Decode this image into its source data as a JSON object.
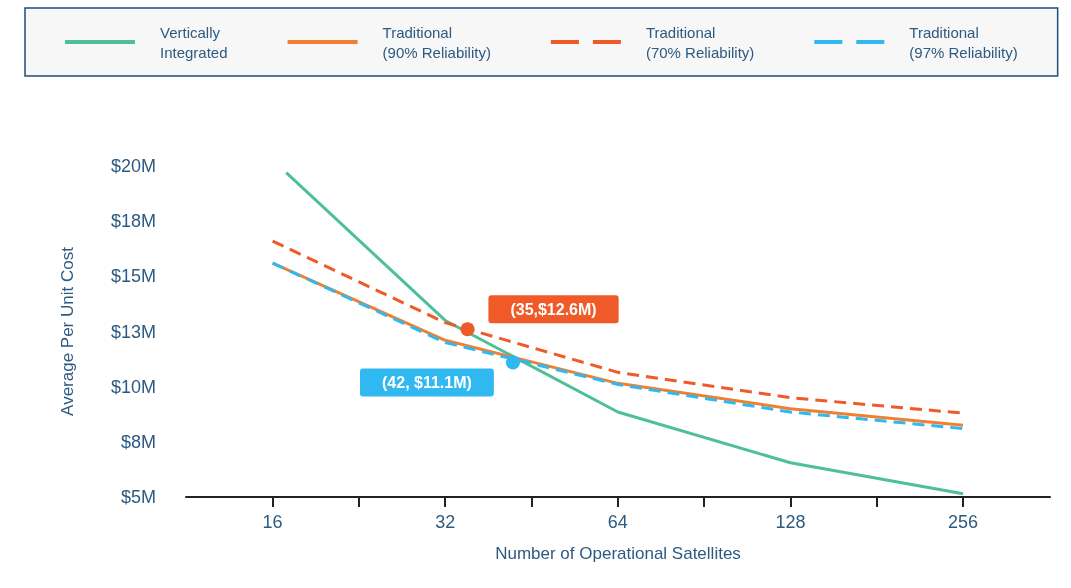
{
  "chart_data": {
    "type": "line",
    "xlabel": "Number of Operational Satellites",
    "ylabel": "Average Per Unit Cost",
    "log": "x",
    "xlim": [
      11.3,
      363
    ],
    "xticks": [
      16,
      {
        "value": 22.6,
        "label": null
      },
      32,
      {
        "value": 45.3,
        "label": null
      },
      64,
      {
        "value": 90.5,
        "label": null
      },
      128,
      {
        "value": 181,
        "label": null
      },
      256
    ],
    "ylim": [
      5,
      20
    ],
    "yticks": [
      {
        "value": 5,
        "label": "$5M"
      },
      {
        "value": 7.5,
        "label": "$8M"
      },
      {
        "value": 10,
        "label": "$10M"
      },
      {
        "value": 12.5,
        "label": "$13M"
      },
      {
        "value": 15,
        "label": "$15M"
      },
      {
        "value": 17.5,
        "label": "$18M"
      },
      {
        "value": 20,
        "label": "$20M"
      }
    ],
    "grid": false,
    "legend": "top",
    "marker": "none",
    "series": [
      {
        "name": "Vertically Integrated",
        "color": "#4dbf99",
        "line_style": "solid",
        "x": [
          16.9,
          32,
          64,
          128,
          256
        ],
        "values": [
          19.7,
          13.0,
          8.85,
          6.55,
          5.15
        ]
      },
      {
        "name": "Traditional (90% Reliability)",
        "color": "#f08030",
        "line_style": "solid",
        "x": [
          16,
          32,
          64,
          128,
          256
        ],
        "values": [
          15.6,
          12.1,
          10.15,
          9.0,
          8.25
        ]
      },
      {
        "name": "Traditional (70% Reliability)",
        "color": "#f05a28",
        "line_style": "dashed",
        "x": [
          16,
          32,
          64,
          128,
          256
        ],
        "values": [
          16.6,
          12.9,
          10.65,
          9.5,
          8.8
        ]
      },
      {
        "name": "Traditional (97% Reliability)",
        "color": "#30b8f0",
        "line_style": "dashed",
        "x": [
          16,
          32,
          64,
          128,
          256
        ],
        "values": [
          15.6,
          12.0,
          10.1,
          8.85,
          8.1
        ]
      }
    ],
    "annotations": [
      {
        "text": "(35,$12.6M)",
        "x": 35,
        "y": 12.6
      },
      {
        "text": "(42, $11.1M)",
        "x": 42,
        "y": 11.1
      }
    ]
  }
}
